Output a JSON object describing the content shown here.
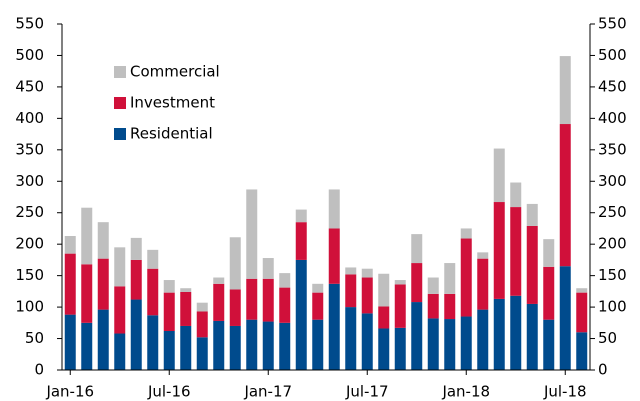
{
  "chart_data": {
    "type": "stacked_bar",
    "categories": [
      "Jan-16",
      null,
      null,
      null,
      null,
      null,
      "Jul-16",
      null,
      null,
      null,
      null,
      null,
      "Jan-17",
      null,
      null,
      null,
      null,
      null,
      "Jul-17",
      null,
      null,
      null,
      null,
      null,
      "Jan-18",
      null,
      null,
      null,
      null,
      null,
      "Jul-18",
      null
    ],
    "series": [
      {
        "name": "Residential",
        "color": "#004b8d",
        "values": [
          88,
          75,
          96,
          58,
          112,
          87,
          62,
          70,
          52,
          78,
          70,
          80,
          77,
          75,
          175,
          80,
          137,
          100,
          90,
          66,
          67,
          108,
          82,
          81,
          85,
          96,
          113,
          118,
          105,
          80,
          165,
          60
        ]
      },
      {
        "name": "Investment",
        "color": "#d0103a",
        "values": [
          97,
          93,
          81,
          75,
          63,
          74,
          61,
          54,
          41,
          59,
          58,
          65,
          68,
          56,
          60,
          43,
          88,
          52,
          57,
          35,
          69,
          62,
          39,
          40,
          124,
          81,
          154,
          141,
          124,
          84,
          226,
          63
        ]
      },
      {
        "name": "Commercial",
        "color": "#bfbfbf",
        "values": [
          28,
          90,
          58,
          62,
          35,
          30,
          20,
          6,
          14,
          10,
          83,
          142,
          33,
          23,
          20,
          14,
          62,
          11,
          14,
          52,
          7,
          46,
          26,
          49,
          16,
          10,
          85,
          39,
          35,
          44,
          108,
          7
        ]
      }
    ],
    "ylim": [
      0,
      550
    ],
    "yticks": [
      0,
      50,
      100,
      150,
      200,
      250,
      300,
      350,
      400,
      450,
      500,
      550
    ],
    "y2lim": [
      0,
      550
    ],
    "y2ticks": [
      0,
      50,
      100,
      150,
      200,
      250,
      300,
      350,
      400,
      450,
      500,
      550
    ],
    "legend": "top-left"
  }
}
